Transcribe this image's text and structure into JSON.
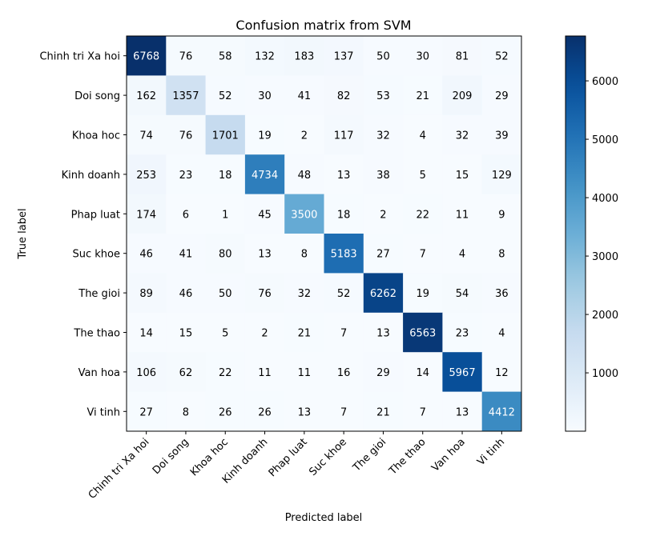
{
  "chart_data": {
    "type": "heatmap",
    "title": "Confusion matrix from SVM",
    "xlabel": "Predicted label",
    "ylabel": "True label",
    "x_categories": [
      "Chinh tri Xa hoi",
      "Doi song",
      "Khoa hoc",
      "Kinh doanh",
      "Phap luat",
      "Suc khoe",
      "The gioi",
      "The thao",
      "Van hoa",
      "Vi tinh"
    ],
    "y_categories": [
      "Chinh tri Xa hoi",
      "Doi song",
      "Khoa hoc",
      "Kinh doanh",
      "Phap luat",
      "Suc khoe",
      "The gioi",
      "The thao",
      "Van hoa",
      "Vi tinh"
    ],
    "values": [
      [
        6768,
        76,
        58,
        132,
        183,
        137,
        50,
        30,
        81,
        52
      ],
      [
        162,
        1357,
        52,
        30,
        41,
        82,
        53,
        21,
        209,
        29
      ],
      [
        74,
        76,
        1701,
        19,
        2,
        117,
        32,
        4,
        32,
        39
      ],
      [
        253,
        23,
        18,
        4734,
        48,
        13,
        38,
        5,
        15,
        129
      ],
      [
        174,
        6,
        1,
        45,
        3500,
        18,
        2,
        22,
        11,
        9
      ],
      [
        46,
        41,
        80,
        13,
        8,
        5183,
        27,
        7,
        4,
        8
      ],
      [
        89,
        46,
        50,
        76,
        32,
        52,
        6262,
        19,
        54,
        36
      ],
      [
        14,
        15,
        5,
        2,
        21,
        7,
        13,
        6563,
        23,
        4
      ],
      [
        106,
        62,
        22,
        11,
        11,
        16,
        29,
        14,
        5967,
        12
      ],
      [
        27,
        8,
        26,
        26,
        13,
        7,
        21,
        7,
        13,
        4412
      ]
    ],
    "colormap": "Blues",
    "color_range": [
      1,
      6768
    ],
    "colorbar_ticks": [
      1000,
      2000,
      3000,
      4000,
      5000,
      6000
    ],
    "grid": false
  }
}
